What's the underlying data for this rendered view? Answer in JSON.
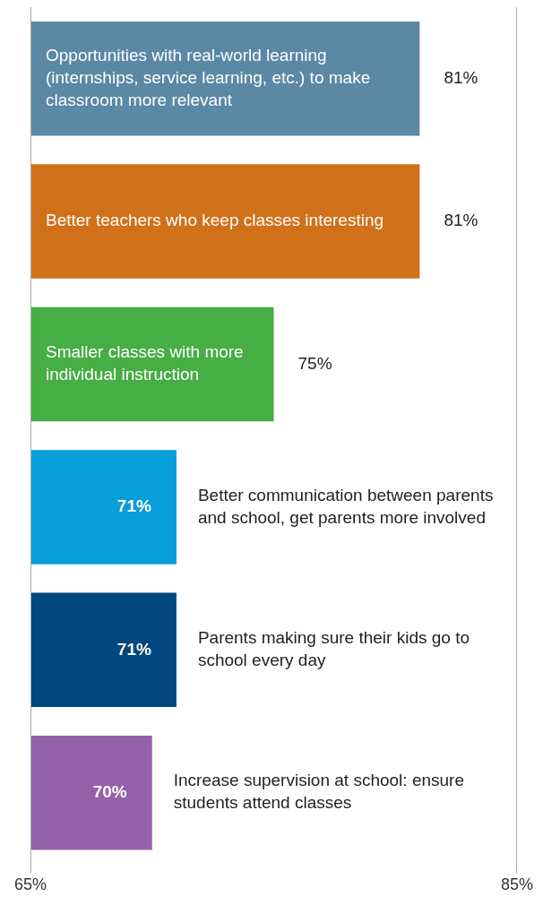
{
  "chart_data": {
    "type": "bar",
    "orientation": "horizontal",
    "categories": [
      "Opportunities with real-world learning (internships, service learning, etc.) to make classroom more relevant",
      "Better teachers who keep classes interesting",
      "Smaller classes with more individual instruction",
      "Better communication between parents and school, get parents more involved",
      "Parents making sure their kids go to school every day",
      "Increase supervision at school: ensure students attend classes"
    ],
    "values": [
      81,
      81,
      75,
      71,
      71,
      70
    ],
    "value_labels": [
      "81%",
      "81%",
      "75%",
      "71%",
      "71%",
      "70%"
    ],
    "colors": [
      "#5b88a4",
      "#d0711a",
      "#47ad45",
      "#079ed9",
      "#02477d",
      "#9461a8"
    ],
    "xlim": [
      65,
      85
    ],
    "xticks": [
      {
        "value": 65,
        "label": "65%"
      },
      {
        "value": 85,
        "label": "85%"
      }
    ],
    "tick_labels": "x",
    "legend": false
  }
}
